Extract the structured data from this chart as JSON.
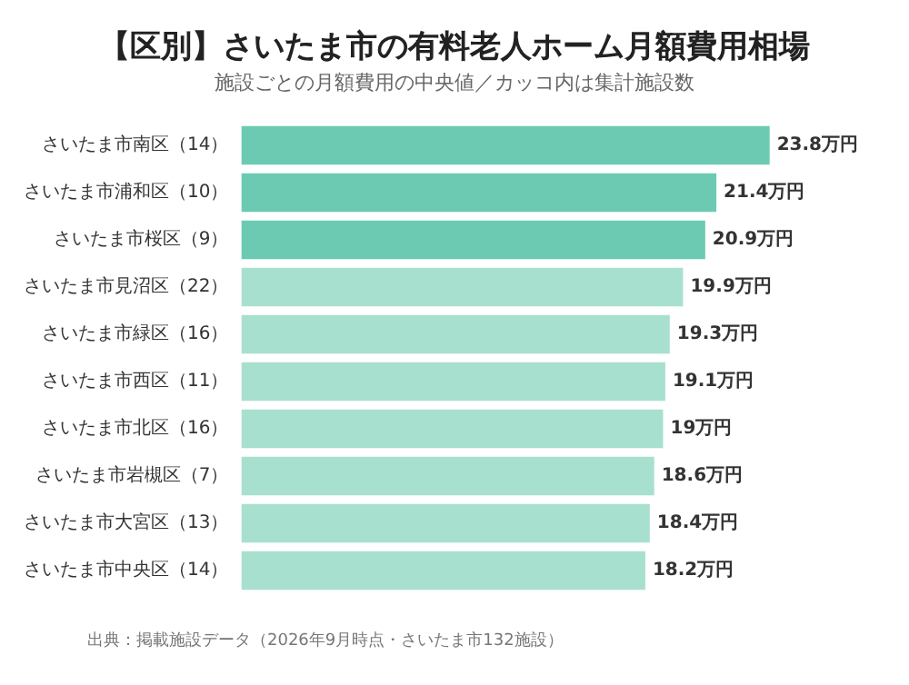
{
  "chart_data": {
    "type": "bar",
    "orientation": "horizontal",
    "title": "【区別】さいたま市の有料老人ホーム月額費用相場",
    "subtitle": "施設ごとの月額費用の中央値／カッコ内は集計施設数",
    "categories": [
      "さいたま市南区（14）",
      "さいたま市浦和区（10）",
      "さいたま市桜区（9）",
      "さいたま市見沼区（22）",
      "さいたま市緑区（16）",
      "さいたま市西区（11）",
      "さいたま市北区（16）",
      "さいたま市岩槻区（7）",
      "さいたま市大宮区（13）",
      "さいたま市中央区（14）"
    ],
    "values": [
      23.8,
      21.4,
      20.9,
      19.9,
      19.3,
      19.1,
      19,
      18.6,
      18.4,
      18.2
    ],
    "value_labels": [
      "23.8万円",
      "21.4万円",
      "20.9万円",
      "19.9万円",
      "19.3万円",
      "19.1万円",
      "19万円",
      "18.6万円",
      "18.4万円",
      "18.2万円"
    ],
    "colors": [
      "#6ccab2",
      "#6ccab2",
      "#6ccab2",
      "#a8e0cf",
      "#a8e0cf",
      "#a8e0cf",
      "#a8e0cf",
      "#a8e0cf",
      "#a8e0cf",
      "#a8e0cf"
    ],
    "grid": false,
    "legend": false,
    "annotations": [
      "出典：掲載施設データ（2026年9月時点・さいたま市132施設）"
    ]
  }
}
